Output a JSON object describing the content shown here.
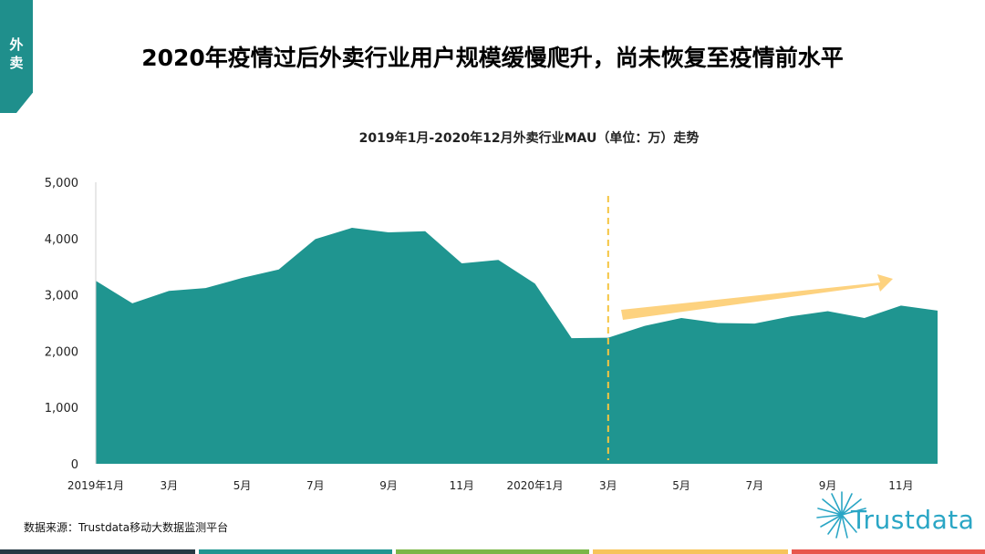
{
  "side_tab": {
    "line1": "外",
    "line2": "卖"
  },
  "page_title": "2020年疫情过后外卖行业用户规模缓慢爬升，尚未恢复至疫情前水平",
  "source": "数据来源：Trustdata移动大数据监测平台",
  "logo": {
    "text": "Trustdata"
  },
  "colors": {
    "area": "#1f9590",
    "arrow": "#fdd27f",
    "divider": "#f5c542",
    "tab": "#1f8f8c",
    "footer": [
      "#263a44",
      "#1f9590",
      "#7ab648",
      "#f7c45a",
      "#e8564c"
    ]
  },
  "chart_data": {
    "type": "area",
    "title": "2019年1月-2020年12月外卖行业MAU（单位：万）走势",
    "ylim": [
      0,
      5000
    ],
    "yticks": [
      "5,000",
      "4,000",
      "3,000",
      "2,000",
      "1,000",
      "0"
    ],
    "ytick_values": [
      5000,
      4000,
      3000,
      2000,
      1000,
      0
    ],
    "x": [
      "2019年1月",
      "2019年2月",
      "2019年3月",
      "2019年4月",
      "2019年5月",
      "2019年6月",
      "2019年7月",
      "2019年8月",
      "2019年9月",
      "2019年10月",
      "2019年11月",
      "2019年12月",
      "2020年1月",
      "2020年2月",
      "2020年3月",
      "2020年4月",
      "2020年5月",
      "2020年6月",
      "2020年7月",
      "2020年8月",
      "2020年9月",
      "2020年10月",
      "2020年11月",
      "2020年12月"
    ],
    "xtick_labels": [
      "2019年1月",
      "",
      "3月",
      "",
      "5月",
      "",
      "7月",
      "",
      "9月",
      "",
      "11月",
      "",
      "2020年1月",
      "",
      "3月",
      "",
      "5月",
      "",
      "7月",
      "",
      "9月",
      "",
      "11月",
      ""
    ],
    "series": [
      {
        "values": [
          3250,
          2850,
          3070,
          3120,
          3300,
          3450,
          3990,
          4190,
          4110,
          4130,
          3560,
          3620,
          3200,
          2230,
          2240,
          2450,
          2590,
          2500,
          2490,
          2620,
          2710,
          2590,
          2810,
          2720
        ]
      }
    ],
    "annotations": {
      "divider_at": "2020年3月",
      "trend_arrow": "2020年3月 to 2020年11月 upward"
    },
    "grid": false,
    "legend": "none"
  }
}
